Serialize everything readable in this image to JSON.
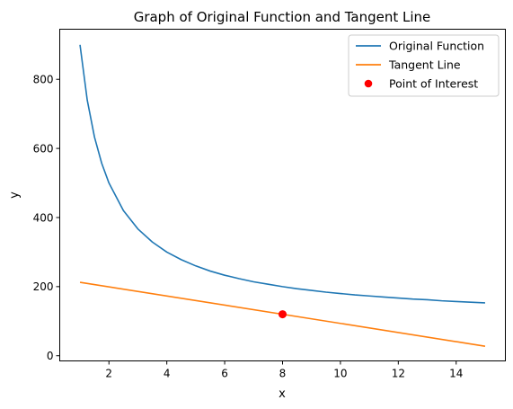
{
  "chart_data": {
    "type": "line",
    "title": "Graph of Original Function and Tangent Line",
    "xlabel": "x",
    "ylabel": "y",
    "xlim": [
      0.3,
      15.7
    ],
    "ylim": [
      -15,
      945
    ],
    "xticks": [
      2,
      4,
      6,
      8,
      10,
      12,
      14
    ],
    "yticks": [
      0,
      200,
      400,
      600,
      800
    ],
    "grid": false,
    "legend_position": "top-right",
    "series": [
      {
        "name": "Original Function",
        "type": "line",
        "color": "#1f77b4",
        "x": [
          1,
          1.25,
          1.5,
          1.75,
          2,
          2.5,
          3,
          3.5,
          4,
          4.5,
          5,
          5.5,
          6,
          6.5,
          7,
          7.5,
          8,
          8.5,
          9,
          9.5,
          10,
          10.5,
          11,
          11.5,
          12,
          12.5,
          13,
          13.5,
          14,
          14.5,
          15
        ],
        "y": [
          900,
          740,
          633,
          557,
          500,
          420,
          367,
          329,
          300,
          278,
          260,
          245,
          233,
          223,
          214,
          207,
          200,
          194,
          189,
          184,
          180,
          176,
          173,
          170,
          167,
          164,
          162,
          159,
          157,
          155,
          153
        ]
      },
      {
        "name": "Tangent Line",
        "type": "line",
        "color": "#ff7f0e",
        "x": [
          1,
          15
        ],
        "y": [
          212.5,
          27.5
        ]
      },
      {
        "name": "Point of Interest",
        "type": "scatter",
        "color": "#ff0000",
        "x": [
          8
        ],
        "y": [
          120
        ]
      }
    ]
  }
}
